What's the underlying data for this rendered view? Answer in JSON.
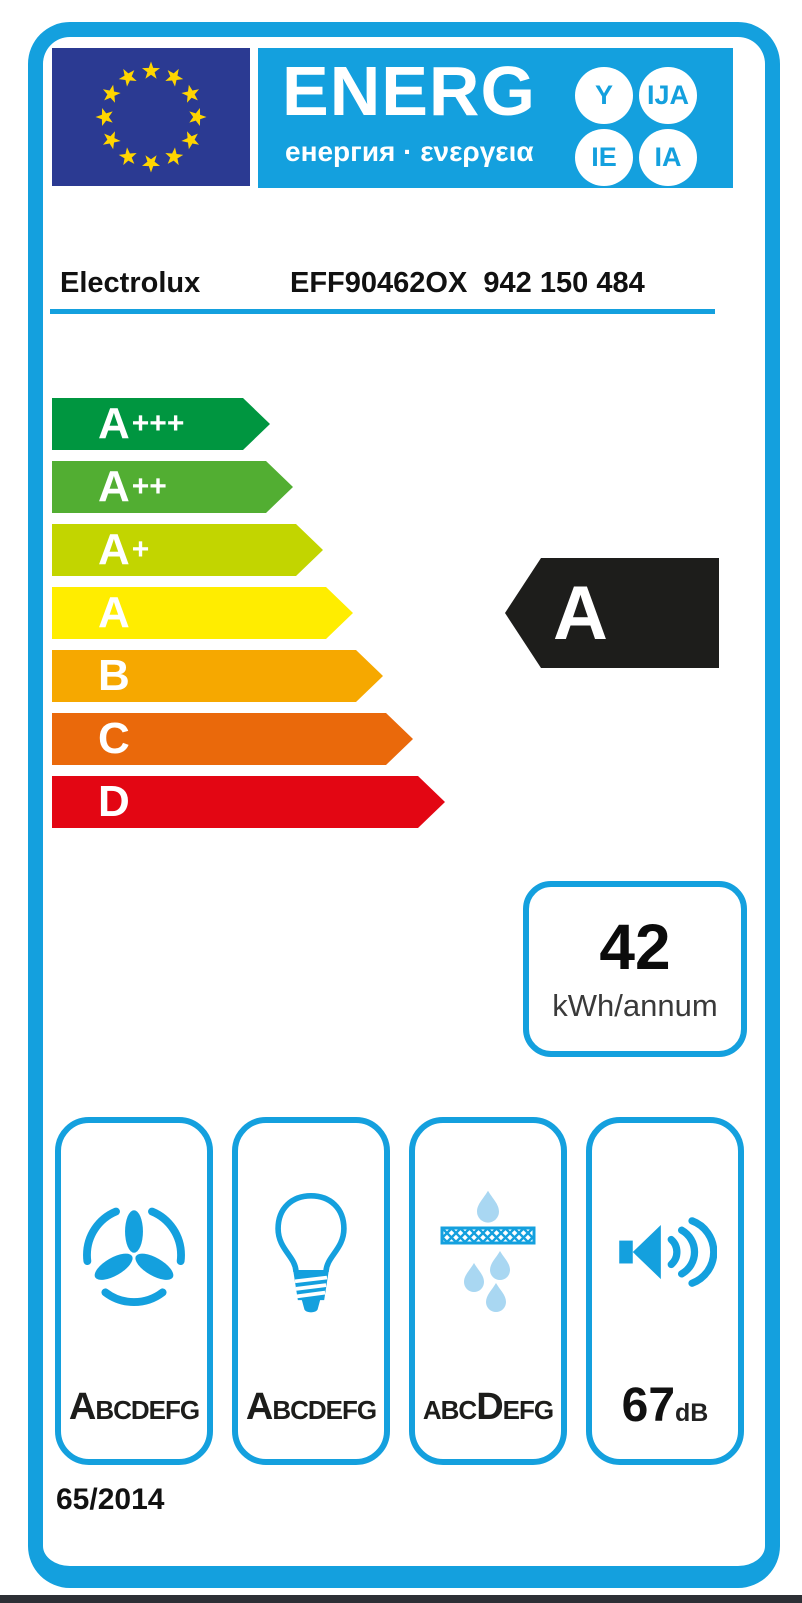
{
  "colors": {
    "accent": "#14A0DE",
    "flag_blue": "#2B3A92",
    "star_yellow": "#FFD500",
    "arrow_black": "#1D1D1B",
    "classes": [
      "#009640",
      "#52AE32",
      "#C2D500",
      "#FFED00",
      "#F6A800",
      "#EA690B",
      "#E30613"
    ]
  },
  "header": {
    "logo_title": "ENERG",
    "logo_subtitle": "енергия · ενεργεια",
    "suffix_bubbles": [
      "Y",
      "IJA",
      "IE",
      "IA"
    ]
  },
  "product": {
    "brand": "Electrolux",
    "model": "EFF90462OX  942 150 484"
  },
  "scale": {
    "classes": [
      {
        "label": "A",
        "suffix": "+++"
      },
      {
        "label": "A",
        "suffix": "++"
      },
      {
        "label": "A",
        "suffix": "+"
      },
      {
        "label": "A",
        "suffix": ""
      },
      {
        "label": "B",
        "suffix": ""
      },
      {
        "label": "C",
        "suffix": ""
      },
      {
        "label": "D",
        "suffix": ""
      }
    ],
    "rating": "A"
  },
  "energy": {
    "value": "42",
    "unit": "kWh/annum"
  },
  "metrics": {
    "fluid_dynamic": {
      "pre": "",
      "class": "A",
      "post": "BCDEFG"
    },
    "lighting": {
      "pre": "",
      "class": "A",
      "post": "BCDEFG"
    },
    "grease": {
      "pre": "ABC",
      "class": "D",
      "post": "EFG"
    },
    "noise": {
      "value": "67",
      "unit": "dB"
    }
  },
  "regulation": "65/2014"
}
